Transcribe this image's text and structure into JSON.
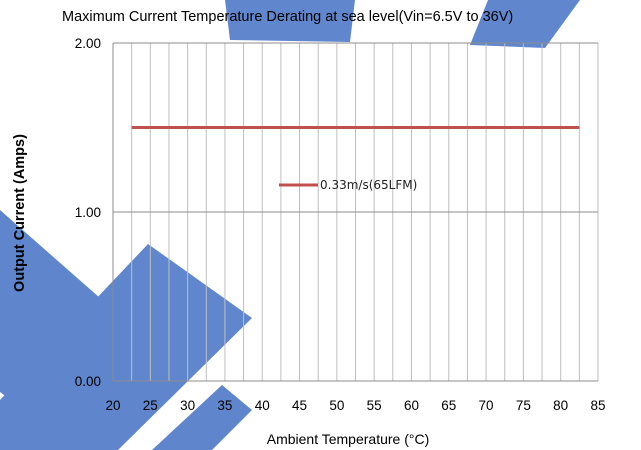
{
  "chart_data": {
    "type": "line",
    "title": "Maximum Current Temperature Derating at sea level(Vin=6.5V to 36V)",
    "xlabel": "Ambient Temperature (°C)",
    "ylabel": "Output Current (Amps)",
    "x_ticks": [
      "20",
      "25",
      "30",
      "35",
      "40",
      "45",
      "50",
      "55",
      "60",
      "65",
      "70",
      "75",
      "80",
      "85"
    ],
    "y_ticks": [
      "0.00",
      "1.00",
      "2.00"
    ],
    "xlim": [
      20,
      85
    ],
    "ylim": [
      0,
      2
    ],
    "grid": true,
    "legend_position": "center",
    "series": [
      {
        "name": "0.33m/s(65LFM)",
        "color": "#c0504d",
        "x": [
          22.5,
          82.5
        ],
        "y": [
          1.5,
          1.5
        ]
      }
    ]
  },
  "decoration": {
    "watermark_color": "#4472c4"
  }
}
